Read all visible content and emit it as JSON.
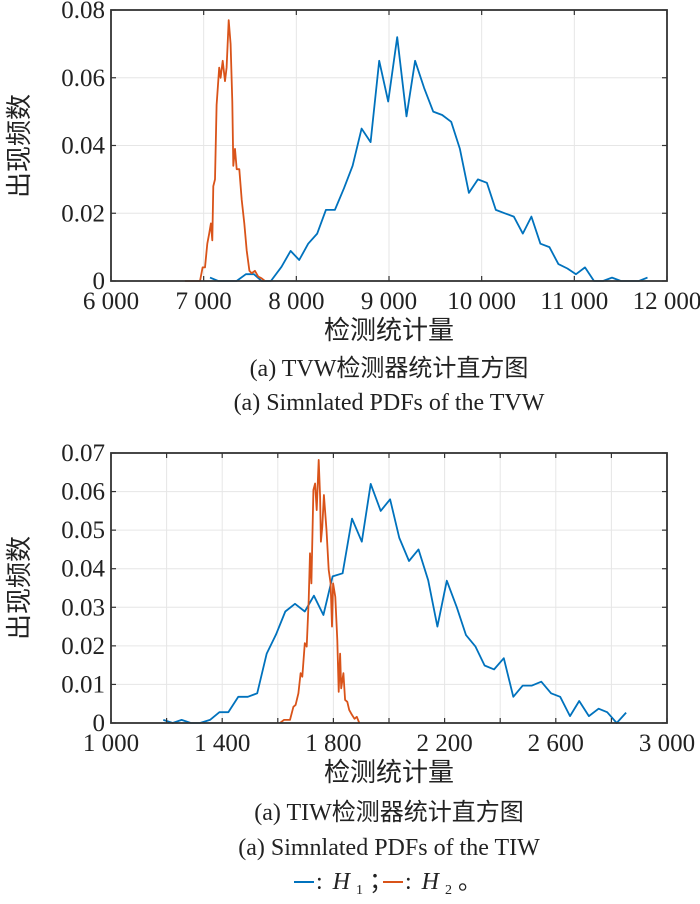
{
  "colors": {
    "h1": "#0072BD",
    "h2": "#D95319",
    "grid": "#e6e6e6",
    "axis": "#333333"
  },
  "legend": {
    "items": [
      {
        "symbol": "—",
        "label": "H",
        "subscript": "1",
        "sep": "；"
      },
      {
        "symbol": "—",
        "label": "H",
        "subscript": "2",
        "sep": "。"
      }
    ],
    "colon": ":"
  },
  "chart_data": [
    {
      "type": "line",
      "title": "(a) TVW检测器统计直方图",
      "subtitle": "(a) Simnlated PDFs of the TVW",
      "xlabel": "检测统计量",
      "ylabel": "出现频数",
      "xlim": [
        6000,
        12000
      ],
      "ylim": [
        0,
        0.08
      ],
      "xticks": [
        6000,
        7000,
        8000,
        9000,
        10000,
        11000,
        12000
      ],
      "xtick_labels": [
        "6 000",
        "7 000",
        "8 000",
        "9 000",
        "10 000",
        "11 000",
        "12 000"
      ],
      "yticks": [
        0,
        0.02,
        0.04,
        0.06,
        0.08
      ],
      "ytick_labels": [
        "0",
        "0.02",
        "0.04",
        "0.06",
        "0.08"
      ],
      "grid": true,
      "series": [
        {
          "name": "H1",
          "x": [
            7068,
            7157,
            7355,
            7456,
            7542,
            7625,
            7725,
            7840,
            7938,
            8031,
            8128,
            8225,
            8319,
            8416,
            8514,
            8607,
            8704,
            8801,
            8894,
            8991,
            9088,
            9189,
            9282,
            9379,
            9477,
            9574,
            9671,
            9765,
            9862,
            9959,
            10056,
            10153,
            10250,
            10347,
            10444,
            10537,
            10634,
            10731,
            10828,
            10925,
            11018,
            11115,
            11212,
            11309,
            11406,
            11503,
            11600,
            11697,
            11790
          ],
          "y": [
            0.001,
            0,
            0,
            0.002,
            0.002,
            0,
            0,
            0.0042,
            0.0089,
            0.0062,
            0.011,
            0.014,
            0.021,
            0.021,
            0.0274,
            0.034,
            0.045,
            0.041,
            0.065,
            0.053,
            0.072,
            0.0486,
            0.065,
            0.057,
            0.05,
            0.049,
            0.047,
            0.039,
            0.026,
            0.03,
            0.029,
            0.021,
            0.02,
            0.019,
            0.014,
            0.019,
            0.011,
            0.01,
            0.005,
            0.0037,
            0.002,
            0.004,
            0,
            0,
            0.001,
            0,
            0,
            0,
            0.001
          ]
        },
        {
          "name": "H2",
          "x": [
            6798,
            6960,
            6989,
            7014,
            7039,
            7060,
            7078,
            7093,
            7104,
            7122,
            7140,
            7168,
            7183,
            7205,
            7230,
            7248,
            7270,
            7291,
            7309,
            7320,
            7338,
            7356,
            7385,
            7410,
            7439,
            7464,
            7493,
            7518,
            7553,
            7589,
            7625,
            7661
          ],
          "y": [
            0,
            0,
            0.004,
            0.004,
            0.011,
            0.014,
            0.017,
            0.012,
            0.028,
            0.03,
            0.052,
            0.063,
            0.06,
            0.065,
            0.059,
            0.063,
            0.077,
            0.07,
            0.053,
            0.034,
            0.039,
            0.033,
            0.033,
            0.024,
            0.017,
            0.009,
            0.003,
            0.0023,
            0.003,
            0.0013,
            0.0008,
            0
          ]
        }
      ]
    },
    {
      "type": "line",
      "title": "(a) TIW检测器统计直方图",
      "subtitle": "(a) Simnlated PDFs of the TIW",
      "xlabel": "检测统计量",
      "ylabel": "出现频数",
      "xlim": [
        1000,
        3000
      ],
      "ylim": [
        0,
        0.07
      ],
      "xticks": [
        1000,
        1400,
        1800,
        2200,
        2600,
        3000
      ],
      "xtick_labels": [
        "1 000",
        "1 400",
        "1 800",
        "2 200",
        "2 600",
        "3 000"
      ],
      "minor_xticks": [
        1200,
        1600,
        2000,
        2400,
        2800
      ],
      "yticks": [
        0,
        0.01,
        0.02,
        0.03,
        0.04,
        0.05,
        0.06,
        0.07
      ],
      "ytick_labels": [
        "0",
        "0.01",
        "0.02",
        "0.03",
        "0.04",
        "0.05",
        "0.06",
        "0.07"
      ],
      "grid": true,
      "series": [
        {
          "name": "H1",
          "x": [
            1188,
            1222,
            1254,
            1287,
            1320,
            1356,
            1390,
            1422,
            1458,
            1492,
            1526,
            1560,
            1594,
            1627,
            1662,
            1697,
            1730,
            1764,
            1797,
            1833,
            1867,
            1902,
            1934,
            1970,
            2004,
            2037,
            2072,
            2106,
            2141,
            2174,
            2208,
            2244,
            2277,
            2311,
            2344,
            2378,
            2413,
            2447,
            2481,
            2514,
            2548,
            2583,
            2616,
            2651,
            2684,
            2719,
            2754,
            2785,
            2819,
            2853
          ],
          "y": [
            0.0008,
            0,
            0.0008,
            0,
            0,
            0.0008,
            0.0028,
            0.0028,
            0.0068,
            0.0068,
            0.0077,
            0.018,
            0.023,
            0.0289,
            0.0309,
            0.0289,
            0.033,
            0.028,
            0.038,
            0.0388,
            0.053,
            0.047,
            0.062,
            0.055,
            0.058,
            0.048,
            0.042,
            0.045,
            0.037,
            0.025,
            0.0369,
            0.03,
            0.0228,
            0.0198,
            0.0149,
            0.0139,
            0.0168,
            0.0068,
            0.0097,
            0.0097,
            0.0107,
            0.0077,
            0.0068,
            0.0018,
            0.0057,
            0.0018,
            0.0037,
            0.0028,
            0,
            0.0027
          ]
        },
        {
          "name": "H2",
          "x": [
            1608,
            1622,
            1644,
            1656,
            1664,
            1674,
            1682,
            1688,
            1697,
            1704,
            1711,
            1716,
            1721,
            1728,
            1734,
            1740,
            1747,
            1752,
            1755,
            1760,
            1766,
            1775,
            1783,
            1790,
            1795,
            1799,
            1807,
            1814,
            1819,
            1824,
            1828,
            1836,
            1842,
            1850,
            1857,
            1867,
            1876,
            1884,
            1893
          ],
          "y": [
            0,
            0.0008,
            0.0008,
            0.0042,
            0.0047,
            0.0077,
            0.0129,
            0.012,
            0.0207,
            0.0198,
            0.0319,
            0.044,
            0.0362,
            0.0604,
            0.0621,
            0.0552,
            0.0682,
            0.0587,
            0.047,
            0.0509,
            0.0591,
            0.05,
            0.0397,
            0.0362,
            0.025,
            0.0362,
            0.0327,
            0.0215,
            0.0081,
            0.018,
            0.009,
            0.0129,
            0.006,
            0.0055,
            0.0034,
            0.0021,
            0.0011,
            0.0016,
            0
          ]
        }
      ]
    }
  ]
}
